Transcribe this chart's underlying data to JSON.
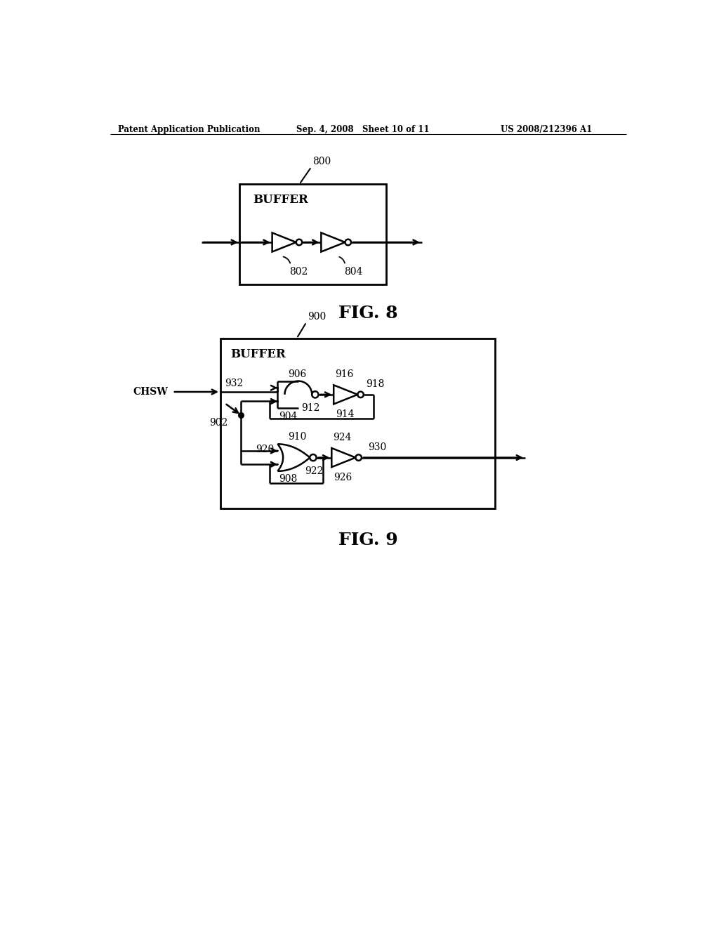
{
  "bg_color": "#ffffff",
  "line_color": "#000000",
  "header_left": "Patent Application Publication",
  "header_mid": "Sep. 4, 2008   Sheet 10 of 11",
  "header_right": "US 2008/212396 A1",
  "fig8_label": "FIG. 8",
  "fig9_label": "FIG. 9",
  "fig8_box_label": "800",
  "fig8_buffer_text": "BUFFER",
  "fig8_inv1_label": "802",
  "fig8_inv2_label": "804",
  "fig9_box_label": "900",
  "fig9_buffer_text": "BUFFER",
  "fig9_chsw_label": "CHSW"
}
